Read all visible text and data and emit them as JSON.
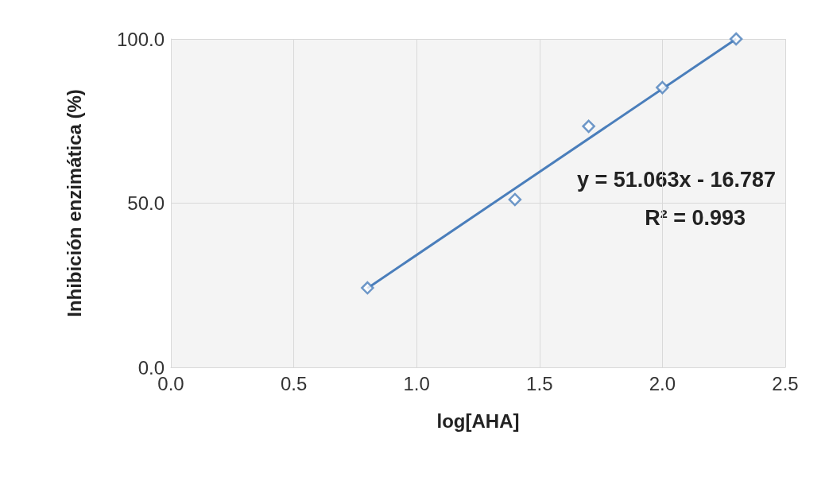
{
  "chart_data": {
    "type": "scatter",
    "xlabel": "log[AHA]",
    "ylabel": "Inhibición enzimática (%)",
    "xlim": [
      0,
      2.5
    ],
    "xticks": [
      {
        "value": 0,
        "label": "0.0"
      },
      {
        "value": 0.5,
        "label": "0.5"
      },
      {
        "value": 1,
        "label": "1.0"
      },
      {
        "value": 1.5,
        "label": "1.5"
      },
      {
        "value": 2,
        "label": "2.0"
      },
      {
        "value": 2.5,
        "label": "2.5"
      }
    ],
    "ylim": [
      0,
      100
    ],
    "yticks": [
      {
        "value": 0,
        "label": "0.0"
      },
      {
        "value": 50,
        "label": "50.0"
      },
      {
        "value": 100,
        "label": "100.0"
      }
    ],
    "grid": true,
    "annotations": [
      "y = 51.063x - 16.787",
      "R² = 0.993"
    ],
    "series": [
      {
        "marker": "diamond",
        "color": "#4a7ebb",
        "x": [
          0.8,
          1.4,
          1.7,
          2.0,
          2.3
        ],
        "values": [
          24.2,
          51.1,
          73.4,
          85.2,
          100
        ]
      },
      {
        "type": "line",
        "marker": "none",
        "color": "#4a7ebb",
        "line_style": "solid",
        "x": [
          0.8,
          2.3
        ],
        "values": [
          24.1,
          100
        ]
      }
    ]
  }
}
